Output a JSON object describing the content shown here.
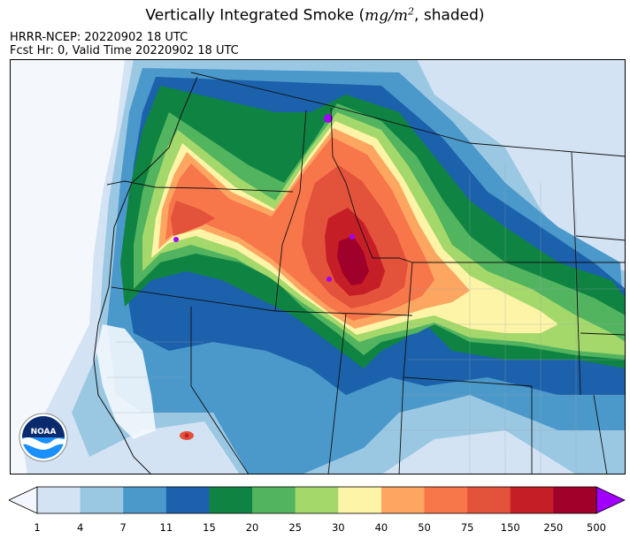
{
  "title": {
    "prefix": "Vertically Integrated Smoke (",
    "unit_main": "mg/m",
    "unit_exp": "2",
    "suffix": ", shaded)"
  },
  "subtitle": {
    "line1": "HRRR-NCEP: 20220902 18 UTC",
    "line2": "Fcst Hr: 0, Valid Time 20220902 18 UTC"
  },
  "logo": {
    "text": "NOAA"
  },
  "colorbar": {
    "ticks": [
      "1",
      "4",
      "7",
      "11",
      "15",
      "20",
      "25",
      "30",
      "40",
      "50",
      "75",
      "150",
      "250",
      "500"
    ],
    "under_color": "#f3f7fd",
    "over_color": "#a100ff",
    "colors": [
      "#d3e3f3",
      "#9ac8e3",
      "#4b98cb",
      "#1b61ab",
      "#0f8442",
      "#52b45f",
      "#a5d86b",
      "#fdf4a7",
      "#fca661",
      "#f7764a",
      "#e3523a",
      "#c61e26",
      "#a0012a"
    ]
  },
  "colors": {
    "state_lines": "#111111",
    "county_lines": "#9aa3ae",
    "background": "#f4f8fd"
  }
}
